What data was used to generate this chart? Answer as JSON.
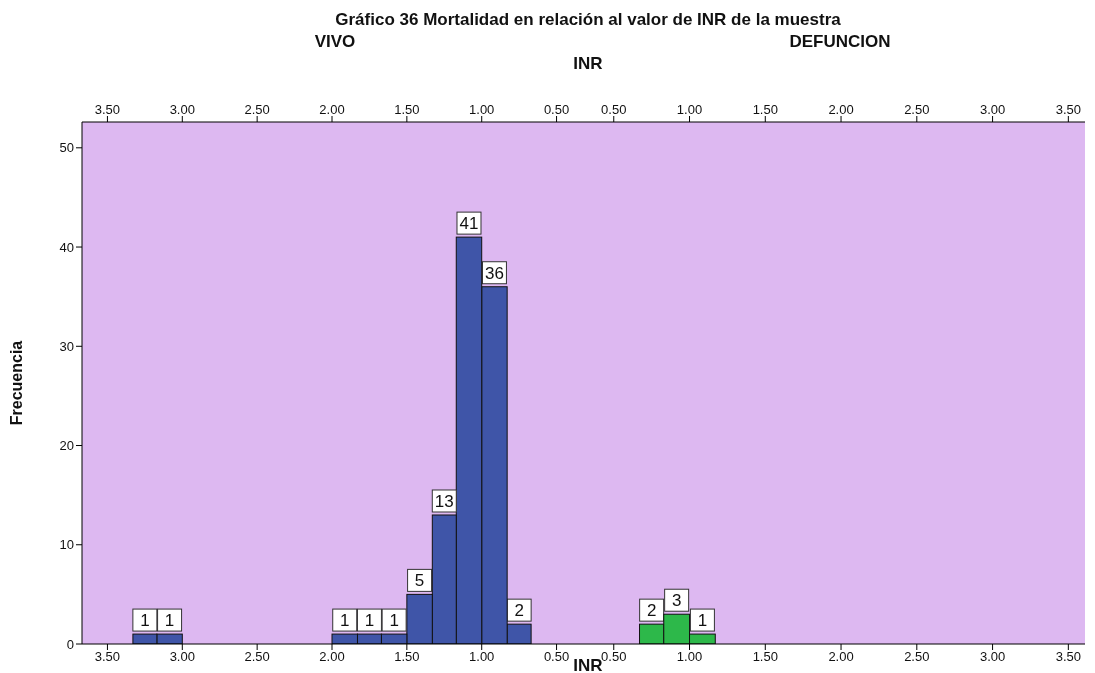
{
  "chart_data": [
    {
      "type": "histogram",
      "title": "Gráfico 36 Mortalidad en relación al valor de INR de la muestra",
      "subtitle": "VIVO",
      "xlabel": "INR",
      "x2label": "INR",
      "ylabel": "Frecuencia",
      "color": "#3f55a8",
      "bins": [
        0.67,
        0.83,
        1.0,
        1.17,
        1.33,
        1.5,
        1.67,
        1.83,
        2.0,
        3.0,
        3.17,
        3.33
      ],
      "values": [
        2,
        36,
        41,
        13,
        5,
        1,
        1,
        1,
        0,
        1,
        1
      ],
      "value_labels": [
        "2",
        "36",
        "41",
        "13",
        "5",
        "1",
        "1",
        "1",
        null,
        "1",
        "1"
      ],
      "xlim": [
        3.67,
        0.29
      ],
      "x2lim": [
        3.67,
        0.29
      ],
      "xticks": [
        {
          "value": 3.5,
          "label": "3.50"
        },
        {
          "value": 3.0,
          "label": "3.00"
        },
        {
          "value": 2.5,
          "label": "2.50"
        },
        {
          "value": 2.0,
          "label": "2.00"
        },
        {
          "value": 1.5,
          "label": "1.50"
        },
        {
          "value": 1.0,
          "label": "1.00"
        },
        {
          "value": 0.5,
          "label": "0.50"
        }
      ],
      "x2ticks": [
        {
          "value": 3.5,
          "label": "3.50"
        },
        {
          "value": 3.0,
          "label": "3.00"
        },
        {
          "value": 2.5,
          "label": "2.50"
        },
        {
          "value": 2.0,
          "label": "2.00"
        },
        {
          "value": 1.5,
          "label": "1.50"
        },
        {
          "value": 1.0,
          "label": "1.00"
        },
        {
          "value": 0.5,
          "label": "0.50"
        }
      ],
      "ylim": [
        0,
        52.6
      ],
      "yticks": [
        0,
        10,
        20,
        30,
        40,
        50
      ]
    },
    {
      "type": "histogram",
      "subtitle": "DEFUNCION",
      "color": "#2db84a",
      "bins": [
        0.67,
        0.83,
        1.0,
        1.17
      ],
      "values": [
        2,
        3,
        1
      ],
      "data_labels": true,
      "xlim": [
        0.33,
        3.61
      ],
      "x2lim": [
        0.33,
        3.61
      ],
      "xticks": [
        {
          "value": 0.5,
          "label": "0.50"
        },
        {
          "value": 1.0,
          "label": "1.00"
        },
        {
          "value": 1.5,
          "label": "1.50"
        },
        {
          "value": 2.0,
          "label": "2.00"
        },
        {
          "value": 2.5,
          "label": "2.50"
        },
        {
          "value": 3.0,
          "label": "3.00"
        },
        {
          "value": 3.5,
          "label": "3.50"
        }
      ],
      "x2ticks": [
        {
          "value": 0.5,
          "label": "0.50"
        },
        {
          "value": 1.0,
          "label": "1.00"
        },
        {
          "value": 1.5,
          "label": "1.50"
        },
        {
          "value": 2.0,
          "label": "2.00"
        },
        {
          "value": 2.5,
          "label": "2.50"
        },
        {
          "value": 3.0,
          "label": "3.00"
        },
        {
          "value": 3.5,
          "label": "3.50"
        }
      ],
      "ylim": [
        0,
        52.6
      ],
      "yticks": [
        0,
        10,
        20,
        30,
        40,
        50
      ],
      "tick_labels": "x"
    }
  ]
}
